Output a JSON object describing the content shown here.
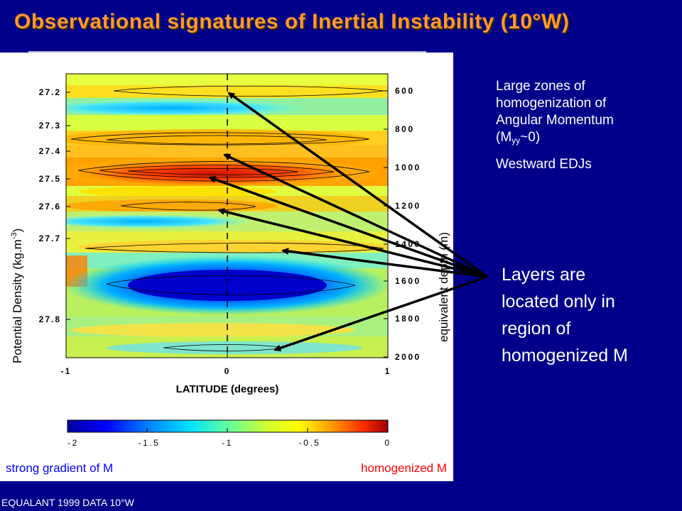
{
  "slide": {
    "title": "Observational signatures of Inertial Instability (10°W)",
    "bullet1": {
      "line1": "Large zones of",
      "line2": "homogenization of",
      "line3": "Angular Momentum",
      "m_prefix": "(M",
      "m_sub": "yy",
      "m_suffix": "~0)"
    },
    "bullet2": "Westward EDJs",
    "callout": {
      "line1": "Layers are",
      "line2": "located only in",
      "line3": "region of",
      "line4": "homogenized M"
    },
    "footer_note": "EQUALANT 1999 DATA 10°W"
  },
  "figure": {
    "y_left_label": "Potential Density (kg.m",
    "y_left_label_sup": "-3",
    "y_left_label_close": ")",
    "y_right_label": "equivalent depth (m)",
    "x_label": "LATITUDE (degrees)",
    "x_ticks": [
      "-1",
      "0",
      "1"
    ],
    "y_left_ticks": [
      "27.2",
      "27.3",
      "27.4",
      "27.5",
      "27.6",
      "27.7",
      "27.8"
    ],
    "y_right_ticks": [
      "600",
      "800",
      "1000",
      "1200",
      "1400",
      "1600",
      "1800",
      "2000"
    ],
    "colorbar_ticks": [
      "-2",
      "-1.5",
      "-1",
      "-0.5",
      "0"
    ],
    "colorbar_left_caption": "strong gradient of M",
    "colorbar_right_caption": "homogenized M"
  },
  "colors": {
    "background": "#00008b",
    "title": "#ff9933",
    "text": "#ffffff",
    "left_caption": "#0000ff",
    "right_caption": "#ff0000"
  }
}
